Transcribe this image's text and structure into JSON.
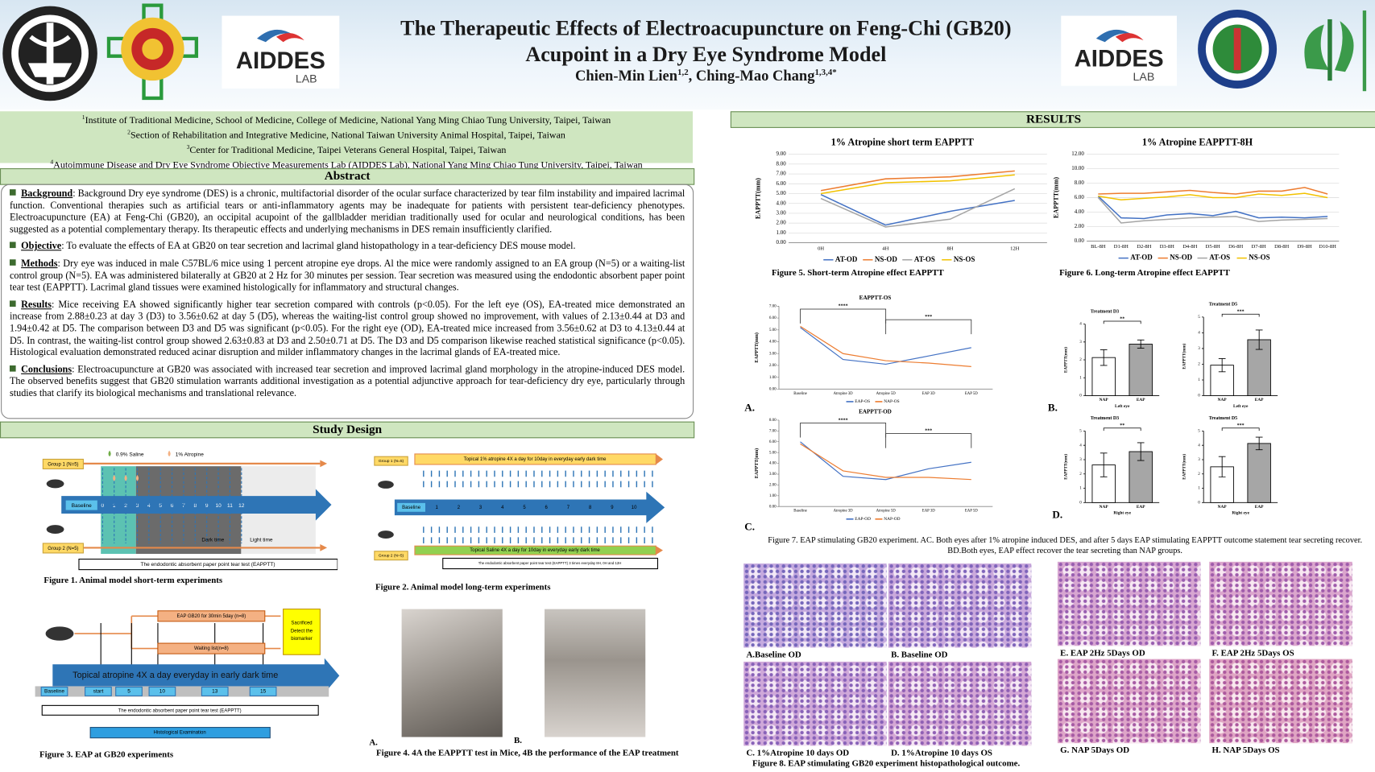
{
  "header": {
    "title_lines": [
      "The Therapeutic Effects of Electroacupuncture on Feng-Chi (GB20)",
      "Acupoint in a Dry Eye Syndrome Model"
    ],
    "authors": [
      {
        "name": "Chien-Min Lien",
        "sup": "1,2"
      },
      {
        "name": ", Ching-Mao Chang",
        "sup": "1,3,4*"
      }
    ],
    "logo_text": {
      "name": "AIDDES",
      "sub": "LAB"
    }
  },
  "affiliations": [
    {
      "sup": "1",
      "text": "Institute of Traditional Medicine, School of Medicine, College of Medicine, National Yang Ming Chiao Tung University, Taipei, Taiwan"
    },
    {
      "sup": "2",
      "text": "Section of Rehabilitation and Integrative Medicine, National Taiwan University Animal Hospital, Taipei, Taiwan"
    },
    {
      "sup": "3",
      "text": "Center for Traditional Medicine, Taipei Veterans General Hospital, Taipei, Taiwan"
    },
    {
      "sup": "4",
      "text": "Autoimmune Disease and Dry Eye Syndrome Objective Measurements Lab (AIDDES Lab), National Yang Ming Chiao Tung University, Taipei, Taiwan"
    }
  ],
  "abstract": {
    "heading": "Abstract",
    "sections": [
      {
        "label": "Background",
        "text": ": Background Dry eye syndrome (DES) is a chronic, multifactorial disorder of the ocular surface characterized by tear film instability and impaired lacrimal function. Conventional therapies such as artificial tears or anti-inflammatory agents may be inadequate for patients with persistent tear-deficiency phenotypes. Electroacupuncture (EA) at Feng-Chi (GB20), an occipital acupoint of the gallbladder meridian traditionally used for ocular and neurological conditions, has been suggested as a potential complementary therapy. Its therapeutic effects and underlying mechanisms in DES remain insufficiently clarified."
      },
      {
        "label": "Objective",
        "text": ": To evaluate the effects of EA at GB20 on tear secretion and lacrimal gland histopathology in a tear-deficiency DES mouse model."
      },
      {
        "label": "Methods",
        "text": ": Dry eye was induced in male C57BL/6 mice using 1 percent atropine eye drops. Al the mice were randomly assigned to an EA group (N=5) or a waiting-list control group (N=5). EA was administered bilaterally at GB20 at 2 Hz for 30 minutes per session. Tear secretion was measured using the endodontic absorbent paper point tear test (EAPPTT). Lacrimal gland tissues were examined histologically for inflammatory and structural changes."
      },
      {
        "label": "Results",
        "text": ": Mice receiving EA showed significantly higher tear secretion compared with controls (p<0.05). For the left eye (OS), EA-treated mice demonstrated an increase from 2.88±0.23 at day 3 (D3) to 3.56±0.62 at day 5 (D5), whereas the waiting-list control group showed no improvement, with values of 2.13±0.44 at D3 and 1.94±0.42 at D5. The comparison between D3 and D5 was significant (p<0.05). For the right eye (OD), EA-treated mice increased from 3.56±0.62 at D3 to 4.13±0.44 at D5. In contrast, the waiting-list control group showed 2.63±0.83 at D3 and 2.50±0.71 at D5. The D3 and D5 comparison likewise reached statistical significance (p<0.05). Histological evaluation demonstrated reduced acinar disruption and milder inflammatory changes in the lacrimal glands of EA-treated mice."
      },
      {
        "label": "Conclusions",
        "text": ": Electroacupuncture at GB20 was associated with increased tear secretion and improved lacrimal gland morphology in the atropine-induced DES model. The observed benefits suggest that GB20 stimulation warrants additional investigation as a potential adjunctive approach for tear-deficiency dry eye, particularly through studies that clarify its biological mechanisms and translational relevance."
      }
    ]
  },
  "study_design": {
    "heading": "Study Design",
    "fig1": {
      "group1": "Group 1 (N=5)",
      "group2": "Group 2 (N=5)",
      "saline": "0.9% Saline",
      "atropine": "1% Atropine",
      "baseline": "Baseline",
      "days": [
        "0",
        "1",
        "2",
        "3",
        "4",
        "5",
        "6",
        "7",
        "8",
        "9",
        "10",
        "11",
        "12"
      ],
      "dark": "Dark time",
      "light": "Light time",
      "test": "The endodontic absorbent paper point tear test (EAPPTT)",
      "caption": "Figure 1. Animal model short-term experiments"
    },
    "fig2": {
      "group1": "Group 1 (N=5)",
      "group2": "Group 2 (N=5)",
      "atropine": "Topical 1% atropine 4X a day for 10day in everyday early dark time",
      "saline": "Topical Saline 4X a day for 10day in everyday early dark time",
      "baseline": "Baseline",
      "days": [
        "1",
        "2",
        "3",
        "4",
        "5",
        "6",
        "7",
        "8",
        "9",
        "10"
      ],
      "test": "The endodontic absorbent paper point tear test (EAPPTT) 3 times everyday 8H, 0H and 12H",
      "caption": "Figure 2. Animal model long-term experiments"
    },
    "fig3": {
      "eap": "EAP GB20 for 30min 5day (n=8)",
      "waiting": "Waiting list(n=8)",
      "sacrificed": [
        "Sacrificed",
        "Detect the",
        "biomarker"
      ],
      "atropine": "Topical atropine 4X a day everyday in early dark time",
      "timeline": [
        "Baseline",
        "start",
        "5",
        "10",
        "13",
        "15"
      ],
      "test": "The endodontic absorbent paper point tear test (EAPPTT)",
      "histo": "Histological Examination",
      "caption": "Figure 3. EAP at GB20 experiments"
    },
    "fig4": {
      "panels": [
        "A.",
        "B."
      ],
      "caption": "Figure 4. 4A the EAPPTT test in Mice, 4B the performance of the EAP treatment"
    }
  },
  "results": {
    "heading": "RESULTS",
    "fig5_caption": "Figure 5. Short-term Atropine effect EAPPTT",
    "fig6_caption": "Figure 6. Long-term Atropine effect EAPPTT",
    "fig7_panels": [
      "A.",
      "B.",
      "C.",
      "D."
    ],
    "fig7_caption": "Figure 7. EAP stimulating GB20 experiment. AC. Both eyes after 1% atropine induced DES, and after 5 days EAP stimulating EAPPTT outcome statement tear secreting recover. BD.Both eyes, EAP effect recover the tear secreting than NAP groups.",
    "fig8_labels": [
      "A.Baseline OD",
      "B. Baseline OD",
      "C. 1%Atropine 10 days OD",
      "D. 1%Atropine 10 days OS",
      "E. EAP 2Hz 5Days OD",
      "F. EAP 2Hz 5Days OS",
      "G. NAP 5Days OD",
      "H. NAP 5Days OS"
    ],
    "fig8_caption": "Figure 8. EAP stimulating GB20 experiment histopathological outcome."
  },
  "chart_data": [
    {
      "type": "line",
      "title": "1% Atropine short term EAPPTT",
      "y_label": "EAPPTT(mm)",
      "categories": [
        "0H",
        "4H",
        "8H",
        "12H"
      ],
      "series": [
        {
          "name": "AT-OD",
          "color": "#4472c4",
          "values": [
            4.9,
            1.8,
            3.2,
            4.3
          ]
        },
        {
          "name": "NS-OD",
          "color": "#ed7d31",
          "values": [
            5.3,
            6.5,
            6.7,
            7.3
          ]
        },
        {
          "name": "AT-OS",
          "color": "#a5a5a5",
          "values": [
            4.5,
            1.6,
            2.4,
            5.5
          ]
        },
        {
          "name": "NS-OS",
          "color": "#f2c200",
          "values": [
            5.0,
            6.1,
            6.3,
            6.9
          ]
        }
      ],
      "ylim": [
        0,
        9
      ],
      "yticks": [
        {
          "value": 0,
          "label": "0.00"
        },
        {
          "value": 1,
          "label": "1.00"
        },
        {
          "value": 2,
          "label": "2.00"
        },
        {
          "value": 3,
          "label": "3.00"
        },
        {
          "value": 4,
          "label": "4.00"
        },
        {
          "value": 5,
          "label": "5.00"
        },
        {
          "value": 6,
          "label": "6.00"
        },
        {
          "value": 7,
          "label": "7.00"
        },
        {
          "value": 8,
          "label": "8.00"
        },
        {
          "value": 9,
          "label": "9.00"
        }
      ],
      "grid": true,
      "legend": "bottom"
    },
    {
      "type": "line",
      "title": "1% Atropine EAPPTT-8H",
      "y_label": "EAPPTT(mm)",
      "categories": [
        "BL-8H",
        "D1-8H",
        "D2-8H",
        "D3-8H",
        "D4-8H",
        "D5-8H",
        "D6-8H",
        "D7-8H",
        "D8-8H",
        "D9-8H",
        "D10-8H"
      ],
      "series": [
        {
          "name": "AT-OD",
          "color": "#4472c4",
          "values": [
            6.2,
            3.2,
            3.1,
            3.6,
            3.8,
            3.5,
            4.1,
            3.2,
            3.3,
            3.2,
            3.4
          ]
        },
        {
          "name": "NS-OD",
          "color": "#ed7d31",
          "values": [
            6.5,
            6.6,
            6.6,
            6.8,
            7.0,
            6.7,
            6.5,
            6.9,
            6.9,
            7.4,
            6.5
          ]
        },
        {
          "name": "AT-OS",
          "color": "#a5a5a5",
          "values": [
            6.0,
            2.5,
            2.8,
            3.0,
            3.2,
            3.3,
            3.4,
            2.7,
            2.9,
            3.0,
            3.1
          ]
        },
        {
          "name": "NS-OS",
          "color": "#f2c200",
          "values": [
            6.2,
            5.7,
            5.9,
            6.1,
            6.4,
            6.0,
            6.0,
            6.5,
            6.3,
            6.6,
            6.0
          ]
        }
      ],
      "ylim": [
        0,
        12
      ],
      "yticks": [
        {
          "value": 0,
          "label": "0.00"
        },
        {
          "value": 2,
          "label": "2.00"
        },
        {
          "value": 4,
          "label": "4.00"
        },
        {
          "value": 6,
          "label": "6.00"
        },
        {
          "value": 8,
          "label": "8.00"
        },
        {
          "value": 10,
          "label": "10.00"
        },
        {
          "value": 12,
          "label": "12.00"
        }
      ],
      "grid": true,
      "legend": "bottom"
    },
    {
      "type": "line",
      "title": "EAPPTT-OS",
      "y_label": "EAPPTT(mm)",
      "categories": [
        "Baseline",
        "Atropine 3D",
        "Atropine 5D",
        "EAP 3D",
        "EAP 5D"
      ],
      "series": [
        {
          "name": "EAP-OS",
          "color": "#4472c4",
          "values": [
            5.2,
            2.5,
            2.1,
            2.8,
            3.5
          ]
        },
        {
          "name": "NAP-OS",
          "color": "#ed7d31",
          "values": [
            5.3,
            3.0,
            2.4,
            2.2,
            1.9
          ]
        }
      ],
      "ylim": [
        0,
        7
      ],
      "yticks": [
        {
          "value": 0,
          "label": "0.00"
        },
        {
          "value": 1,
          "label": "1.00"
        },
        {
          "value": 2,
          "label": "2.00"
        },
        {
          "value": 3,
          "label": "3.00"
        },
        {
          "value": 4,
          "label": "4.00"
        },
        {
          "value": 5,
          "label": "5.00"
        },
        {
          "value": 6,
          "label": "6.00"
        },
        {
          "value": 7,
          "label": "7.00"
        }
      ],
      "grid": false,
      "legend": "bottom",
      "annotations": [
        "****",
        "***"
      ]
    },
    {
      "type": "line",
      "title": "EAPPTT-OD",
      "y_label": "EAPPTT(mm)",
      "categories": [
        "Baseline",
        "Atropine 3D",
        "Atropine 5D",
        "EAP 3D",
        "EAP 5D"
      ],
      "series": [
        {
          "name": "EAP-OD",
          "color": "#4472c4",
          "values": [
            6.0,
            2.8,
            2.5,
            3.5,
            4.1
          ]
        },
        {
          "name": "NAP-OD",
          "color": "#ed7d31",
          "values": [
            5.8,
            3.3,
            2.7,
            2.7,
            2.5
          ]
        }
      ],
      "ylim": [
        0,
        8
      ],
      "yticks": [
        {
          "value": 0,
          "label": "0.00"
        },
        {
          "value": 1,
          "label": "1.00"
        },
        {
          "value": 2,
          "label": "2.00"
        },
        {
          "value": 3,
          "label": "3.00"
        },
        {
          "value": 4,
          "label": "4.00"
        },
        {
          "value": 5,
          "label": "5.00"
        },
        {
          "value": 6,
          "label": "6.00"
        },
        {
          "value": 7,
          "label": "7.00"
        },
        {
          "value": 8,
          "label": "8.00"
        }
      ],
      "grid": false,
      "legend": "bottom",
      "annotations": [
        "****",
        "***"
      ]
    },
    {
      "type": "bar",
      "title": "Treatment D3",
      "y_label": "EAPPTT(mm)",
      "x_label": "Left eye",
      "categories": [
        "NAP",
        "EAP"
      ],
      "values": [
        2.13,
        2.88
      ],
      "errors": [
        0.44,
        0.23
      ],
      "colors": [
        "#ffffff",
        "#a6a6a6"
      ],
      "ylim": [
        0,
        4
      ],
      "yticks": [
        0,
        1,
        2,
        3,
        4
      ],
      "annotation": "**"
    },
    {
      "type": "bar",
      "title": "Treatment D5",
      "y_label": "EAPPTT(mm)",
      "x_label": "Left eye",
      "categories": [
        "NAP",
        "EAP"
      ],
      "values": [
        1.94,
        3.56
      ],
      "errors": [
        0.42,
        0.62
      ],
      "colors": [
        "#ffffff",
        "#a6a6a6"
      ],
      "ylim": [
        0,
        5
      ],
      "yticks": [
        0,
        1,
        2,
        3,
        4,
        5
      ],
      "annotation": "***"
    },
    {
      "type": "bar",
      "title": "Treatment D3",
      "y_label": "EAPPTT(mm)",
      "x_label": "Right eye",
      "categories": [
        "NAP",
        "EAP"
      ],
      "values": [
        2.63,
        3.56
      ],
      "errors": [
        0.83,
        0.62
      ],
      "colors": [
        "#ffffff",
        "#a6a6a6"
      ],
      "ylim": [
        0,
        5
      ],
      "yticks": [
        0,
        1,
        2,
        3,
        4,
        5
      ],
      "annotation": "**"
    },
    {
      "type": "bar",
      "title": "Treatment D5",
      "y_label": "EAPPTT(mm)",
      "x_label": "Right eye",
      "categories": [
        "NAP",
        "EAP"
      ],
      "values": [
        2.5,
        4.13
      ],
      "errors": [
        0.71,
        0.44
      ],
      "colors": [
        "#ffffff",
        "#a6a6a6"
      ],
      "ylim": [
        0,
        5
      ],
      "yticks": [
        0,
        1,
        2,
        3,
        4,
        5
      ],
      "annotation": "***"
    }
  ]
}
